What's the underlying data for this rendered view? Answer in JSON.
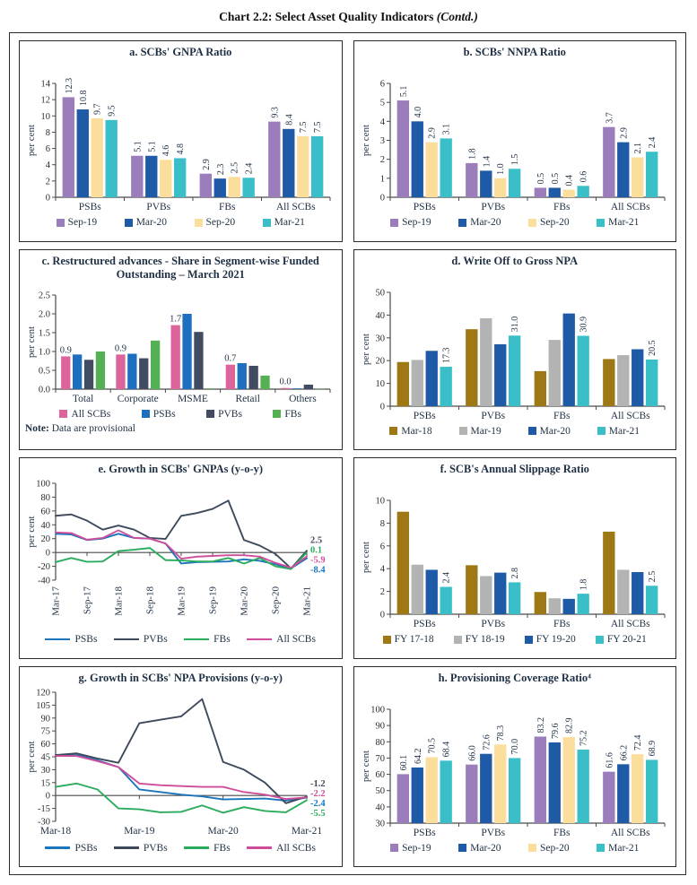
{
  "page_title": {
    "main": "Chart 2.2: Select Asset Quality Indicators ",
    "suffix": "(Contd.)"
  },
  "colors": {
    "purple": "#9A7DBA",
    "dark_blue": "#1F5AA7",
    "cream": "#FBDE9B",
    "cyan": "#3ABFC9",
    "gold": "#9D7814",
    "gray": "#B3B3B3",
    "pink": "#DD639C",
    "bright_blue": "#1E6FC0",
    "slate": "#414C63",
    "green": "#55B054",
    "line_blue": "#1B75BC",
    "line_slate": "#3E4A5C",
    "line_green": "#2BAC5C",
    "line_pink": "#CE4D9B",
    "axis": "#4a4a4a",
    "label_text": "#223447"
  },
  "chart_data": [
    {
      "type": "bar",
      "title": "a. SCBs' GNPA Ratio",
      "ylabel": "per cent",
      "ylim": [
        0,
        14
      ],
      "yticks": [
        0,
        2,
        4,
        6,
        8,
        10,
        12,
        14
      ],
      "ydec": 0,
      "categories": [
        "PSBs",
        "PVBs",
        "FBs",
        "All SCBs"
      ],
      "series": [
        {
          "name": "Sep-19",
          "color": "purple",
          "values": [
            12.3,
            5.1,
            2.9,
            9.3
          ]
        },
        {
          "name": "Mar-20",
          "color": "dark_blue",
          "values": [
            10.8,
            5.1,
            2.3,
            8.4
          ]
        },
        {
          "name": "Sep-20",
          "color": "cream",
          "values": [
            9.7,
            4.6,
            2.5,
            7.5
          ]
        },
        {
          "name": "Mar-21",
          "color": "cyan",
          "values": [
            9.5,
            4.8,
            2.4,
            7.5
          ]
        }
      ],
      "value_labels": {
        "mode": "all"
      },
      "label_rotate": true
    },
    {
      "type": "bar",
      "title": "b. SCBs' NNPA Ratio",
      "ylabel": "per cent",
      "ylim": [
        0,
        6
      ],
      "yticks": [
        0,
        1,
        2,
        3,
        4,
        5,
        6
      ],
      "ydec": 0,
      "categories": [
        "PSBs",
        "PVBs",
        "FBs",
        "All SCBs"
      ],
      "series": [
        {
          "name": "Sep-19",
          "color": "purple",
          "values": [
            5.1,
            1.8,
            0.5,
            3.7
          ]
        },
        {
          "name": "Mar-20",
          "color": "dark_blue",
          "values": [
            4.0,
            1.4,
            0.5,
            2.9
          ]
        },
        {
          "name": "Sep-20",
          "color": "cream",
          "values": [
            2.9,
            1.0,
            0.4,
            2.1
          ]
        },
        {
          "name": "Mar-21",
          "color": "cyan",
          "values": [
            3.1,
            1.5,
            0.6,
            2.4
          ]
        }
      ],
      "value_labels": {
        "mode": "all"
      },
      "label_rotate": true
    },
    {
      "type": "bar",
      "title": "c. Restructured advances - Share in Segment-wise Funded Outstanding – March 2021",
      "ylabel": "per cent",
      "ylim": [
        0,
        2.5
      ],
      "yticks": [
        0,
        0.5,
        1.0,
        1.5,
        2.0,
        2.5
      ],
      "ydec": 1,
      "categories": [
        "Total",
        "Corporate",
        "MSME",
        "Retail",
        "Others"
      ],
      "series": [
        {
          "name": "All SCBs",
          "color": "pink",
          "values": [
            0.87,
            0.92,
            1.7,
            0.65,
            0.03
          ]
        },
        {
          "name": "PSBs",
          "color": "bright_blue",
          "values": [
            0.92,
            0.94,
            2.0,
            0.69,
            0.02
          ]
        },
        {
          "name": "PVBs",
          "color": "slate",
          "values": [
            0.78,
            0.82,
            1.52,
            0.62,
            0.12
          ]
        },
        {
          "name": "FBs",
          "color": "green",
          "values": [
            1.0,
            1.29,
            0.02,
            0.36,
            0.005
          ]
        }
      ],
      "value_labels": {
        "mode": "one",
        "series": 0,
        "texts": [
          "0.9",
          "0.9",
          "1.7",
          "0.7",
          "0.0"
        ]
      },
      "label_rotate": false,
      "note_label": "Note:",
      "note_text": " Data are provisional"
    },
    {
      "type": "bar",
      "title": "d. Write Off to Gross NPA",
      "ylabel": "per cent",
      "ylim": [
        0,
        50
      ],
      "yticks": [
        0,
        10,
        20,
        30,
        40,
        50
      ],
      "ydec": 0,
      "categories": [
        "PSBs",
        "PVBs",
        "FBs",
        "All SCBs"
      ],
      "series": [
        {
          "name": "Mar-18",
          "color": "gold",
          "values": [
            19.4,
            33.8,
            15.4,
            20.7
          ]
        },
        {
          "name": "Mar-19",
          "color": "gray",
          "values": [
            20.3,
            38.6,
            29.1,
            22.4
          ]
        },
        {
          "name": "Mar-20",
          "color": "dark_blue",
          "values": [
            24.3,
            27.2,
            40.7,
            25.0
          ]
        },
        {
          "name": "Mar-21",
          "color": "cyan",
          "values": [
            17.3,
            31.0,
            30.9,
            20.5
          ]
        }
      ],
      "value_labels": {
        "mode": "one",
        "series": 3,
        "texts": [
          "17.3",
          "31.0",
          "30.9",
          "20.5"
        ]
      },
      "label_rotate": true
    },
    {
      "type": "line",
      "title": "e. Growth in SCBs' GNPAs (y-o-y)",
      "ylabel": "per cent",
      "ylim": [
        -40,
        100
      ],
      "yticks": [
        -40,
        -20,
        0,
        20,
        40,
        60,
        80,
        100
      ],
      "ydec": 0,
      "n_points": 17,
      "rotate_xticks": true,
      "xticks": [
        {
          "pos": 0,
          "label": "Mar-17"
        },
        {
          "pos": 2,
          "label": "Sep-17"
        },
        {
          "pos": 4,
          "label": "Mar-18"
        },
        {
          "pos": 6,
          "label": "Sep-18"
        },
        {
          "pos": 8,
          "label": "Mar-19"
        },
        {
          "pos": 10,
          "label": "Sep-19"
        },
        {
          "pos": 12,
          "label": "Mar-20"
        },
        {
          "pos": 14,
          "label": "Sep-20"
        },
        {
          "pos": 16,
          "label": "Mar-21"
        }
      ],
      "series": [
        {
          "name": "PSBs",
          "color": "line_blue",
          "values": [
            27,
            26,
            18,
            20,
            27,
            21,
            20,
            13,
            -16,
            -14,
            -13.5,
            -13,
            -10,
            -12,
            -17,
            -23,
            -8.4
          ]
        },
        {
          "name": "PVBs",
          "color": "line_slate",
          "values": [
            53,
            55,
            46,
            33,
            39,
            33,
            21,
            19.5,
            53,
            57,
            63,
            75,
            18,
            10,
            -2,
            -23,
            2.5
          ]
        },
        {
          "name": "FBs",
          "color": "line_green",
          "values": [
            -14,
            -8,
            -13.5,
            -13,
            2,
            4,
            6.5,
            -11,
            -11.5,
            -13,
            -13,
            -8,
            -16,
            -8,
            -20,
            -24,
            0.1
          ]
        },
        {
          "name": "All SCBs",
          "color": "line_pink",
          "values": [
            29,
            28,
            18.5,
            21,
            32,
            21,
            20,
            13,
            -9,
            -6,
            -5,
            -4,
            -4,
            -6,
            -15,
            -22,
            -5.9
          ]
        }
      ],
      "end_labels": [
        {
          "series": 1,
          "text": "2.5"
        },
        {
          "series": 2,
          "text": "0.1"
        },
        {
          "series": 3,
          "text": "-5.9"
        },
        {
          "series": 0,
          "text": "-8.4"
        }
      ]
    },
    {
      "type": "bar",
      "title": "f. SCB's Annual Slippage Ratio",
      "ylabel": "per cent",
      "ylim": [
        0,
        10
      ],
      "yticks": [
        0,
        2,
        4,
        6,
        8,
        10
      ],
      "ydec": 0,
      "categories": [
        "PSBs",
        "PVBs",
        "FBs",
        "All SCBs"
      ],
      "series": [
        {
          "name": "FY 17-18",
          "color": "gold",
          "values": [
            9.0,
            4.3,
            1.95,
            7.25
          ]
        },
        {
          "name": "FY 18-19",
          "color": "gray",
          "values": [
            4.35,
            3.35,
            1.4,
            3.9
          ]
        },
        {
          "name": "FY 19-20",
          "color": "dark_blue",
          "values": [
            3.9,
            3.65,
            1.35,
            3.7
          ]
        },
        {
          "name": "FY 20-21",
          "color": "cyan",
          "values": [
            2.4,
            2.8,
            1.8,
            2.5
          ]
        }
      ],
      "value_labels": {
        "mode": "one",
        "series": 3,
        "texts": [
          "2.4",
          "2.8",
          "1.8",
          "2.5"
        ]
      },
      "label_rotate": true
    },
    {
      "type": "line",
      "title": "g. Growth in SCBs' NPA Provisions (y-o-y)",
      "ylabel": "per cent",
      "ylim": [
        -30,
        120
      ],
      "yticks": [
        -30,
        -15,
        0,
        15,
        30,
        45,
        60,
        75,
        90,
        105,
        120
      ],
      "ydec": 0,
      "n_points": 13,
      "rotate_xticks": false,
      "xticks": [
        {
          "pos": 0,
          "label": "Mar-18"
        },
        {
          "pos": 4,
          "label": "Mar-19"
        },
        {
          "pos": 8,
          "label": "Mar-20"
        },
        {
          "pos": 12,
          "label": "Mar-21"
        }
      ],
      "series": [
        {
          "name": "PSBs",
          "color": "line_blue",
          "values": [
            47,
            47,
            41,
            33,
            7,
            4,
            1,
            -1,
            -4.5,
            -4,
            -3.5,
            -6,
            -2.4
          ]
        },
        {
          "name": "PVBs",
          "color": "line_slate",
          "values": [
            47,
            49,
            43,
            38,
            84,
            88,
            92,
            112,
            39,
            30,
            15,
            -9,
            -1.2
          ]
        },
        {
          "name": "FBs",
          "color": "line_green",
          "values": [
            10,
            14,
            7,
            -15,
            -16,
            -19.5,
            -19,
            -11.5,
            -20,
            -13.5,
            -18,
            -19.5,
            -5.5
          ]
        },
        {
          "name": "All SCBs",
          "color": "line_pink",
          "values": [
            46,
            46,
            40,
            33,
            14,
            12,
            11,
            10,
            10,
            4,
            1,
            -4,
            -2.2
          ]
        }
      ],
      "end_labels": [
        {
          "series": 1,
          "text": "-1.2"
        },
        {
          "series": 3,
          "text": "-2.2"
        },
        {
          "series": 0,
          "text": "-2.4"
        },
        {
          "series": 2,
          "text": "-5.5"
        }
      ]
    },
    {
      "type": "bar",
      "title": "h. Provisioning Coverage Ratio⁴",
      "ylabel": "per cent",
      "ylim": [
        30,
        100
      ],
      "yticks": [
        30,
        40,
        50,
        60,
        70,
        80,
        90,
        100
      ],
      "ydec": 0,
      "categories": [
        "PSBs",
        "PVBs",
        "FBs",
        "All SCBs"
      ],
      "series": [
        {
          "name": "Sep-19",
          "color": "purple",
          "values": [
            60.1,
            66.0,
            83.2,
            61.6
          ]
        },
        {
          "name": "Mar-20",
          "color": "dark_blue",
          "values": [
            64.2,
            72.6,
            79.6,
            66.2
          ]
        },
        {
          "name": "Sep-20",
          "color": "cream",
          "values": [
            70.5,
            78.3,
            82.9,
            72.4
          ]
        },
        {
          "name": "Mar-21",
          "color": "cyan",
          "values": [
            68.4,
            70.0,
            75.2,
            68.9
          ]
        }
      ],
      "value_labels": {
        "mode": "all"
      },
      "label_rotate": true
    }
  ]
}
